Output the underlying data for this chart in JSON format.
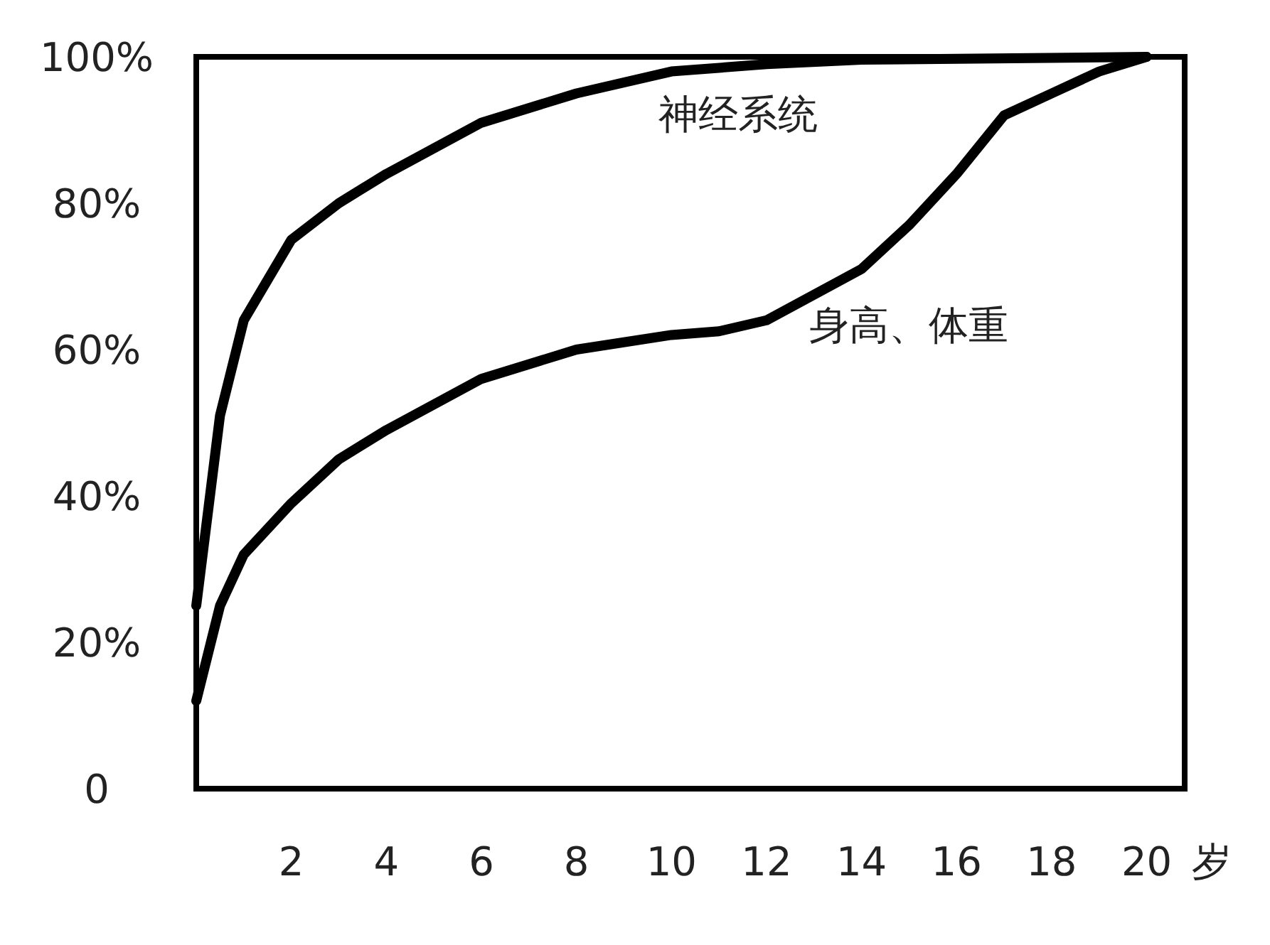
{
  "chart_data": {
    "type": "line",
    "xlabel": "岁",
    "xlim": [
      0,
      20.8
    ],
    "xticks": [
      2,
      4,
      6,
      8,
      10,
      12,
      14,
      16,
      18,
      20
    ],
    "ylim": [
      0,
      100
    ],
    "yticks": [
      0,
      {
        "value": 20,
        "label": "20%"
      },
      {
        "value": 40,
        "label": "40%"
      },
      {
        "value": 60,
        "label": "60%"
      },
      {
        "value": 80,
        "label": "80%"
      },
      {
        "value": 100,
        "label": "100%"
      }
    ],
    "series": [
      {
        "name": "神经系统",
        "color": "#000000",
        "x": [
          0,
          0.5,
          1,
          2,
          3,
          4,
          6,
          8,
          10,
          12,
          14,
          20
        ],
        "values": [
          25,
          51,
          64,
          75,
          80,
          84,
          91,
          95,
          98,
          99,
          99.6,
          100
        ]
      },
      {
        "name": "身高、体重",
        "color": "#000000",
        "x": [
          0,
          0.5,
          1,
          2,
          3,
          4,
          6,
          8,
          10,
          11,
          12,
          14,
          15,
          16,
          17,
          18,
          19,
          20
        ],
        "values": [
          12,
          25,
          32,
          39,
          45,
          49,
          56,
          60,
          62,
          62.5,
          64,
          71,
          77,
          84,
          92,
          95,
          98,
          100
        ]
      }
    ]
  }
}
